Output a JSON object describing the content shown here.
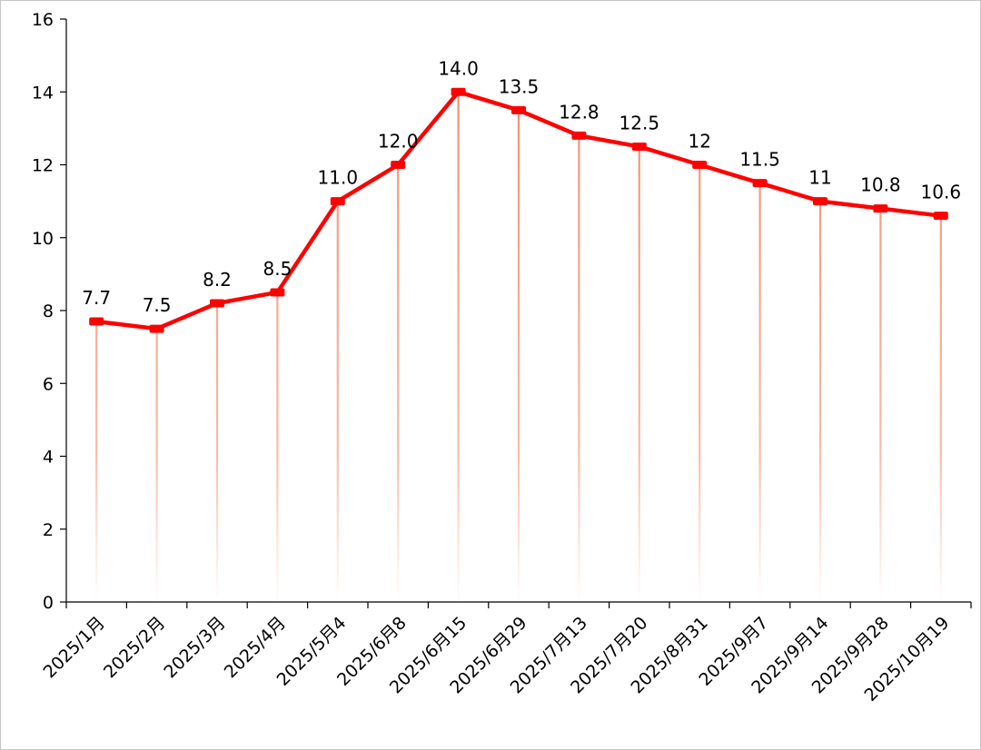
{
  "chart_data": {
    "type": "line",
    "title": "",
    "xlabel": "",
    "ylabel": "",
    "categories": [
      "2025/1月",
      "2025/2月",
      "2025/3月",
      "2025/4月",
      "2025/5月4",
      "2025/6月8",
      "2025/6月15",
      "2025/6月29",
      "2025/7月13",
      "2025/7月20",
      "2025/8月31",
      "2025/9月7",
      "2025/9月14",
      "2025/9月28",
      "2025/10月19"
    ],
    "series": [
      {
        "name": "",
        "values": [
          7.7,
          7.5,
          8.2,
          8.5,
          11.0,
          12.0,
          14.0,
          13.5,
          12.8,
          12.5,
          12,
          11.5,
          11,
          10.8,
          10.6
        ]
      }
    ],
    "data_labels": [
      "7.7",
      "7.5",
      "8.2",
      "8.5",
      "11.0",
      "12.0",
      "14.0",
      "13.5",
      "12.8",
      "12.5",
      "12",
      "11.5",
      "11",
      "10.8",
      "10.6"
    ],
    "ylim": [
      0,
      16
    ],
    "yticks": [
      "0",
      "2",
      "4",
      "6",
      "8",
      "10",
      "12",
      "14",
      "16"
    ],
    "grid": false,
    "legend": "none",
    "colors": {
      "line": "#ff0000",
      "marker": "#ff0000",
      "drop_line": "#f4845f",
      "axis": "#000000"
    }
  }
}
